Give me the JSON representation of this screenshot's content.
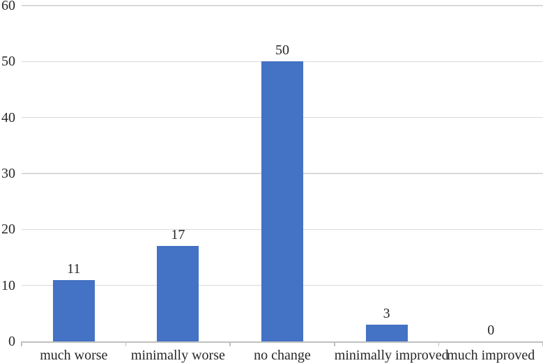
{
  "chart_data": {
    "type": "bar",
    "title": "",
    "xlabel": "",
    "ylabel": "",
    "categories": [
      "much worse",
      "minimally worse",
      "no change",
      "minimally improved",
      "much improved"
    ],
    "values": [
      11,
      17,
      50,
      3,
      0
    ],
    "data_labels": [
      "11",
      "17",
      "50",
      "3",
      "0"
    ],
    "ylim": [
      0,
      60
    ],
    "yticks": [
      0,
      10,
      20,
      30,
      40,
      50,
      60
    ],
    "grid": "horizontal",
    "legend": "none",
    "colors": {
      "bar": "#4472C4",
      "gridline": "#D9D9D9",
      "axis_line": "#BFBFBF",
      "text": "#262626",
      "background": "#FFFFFF"
    }
  }
}
